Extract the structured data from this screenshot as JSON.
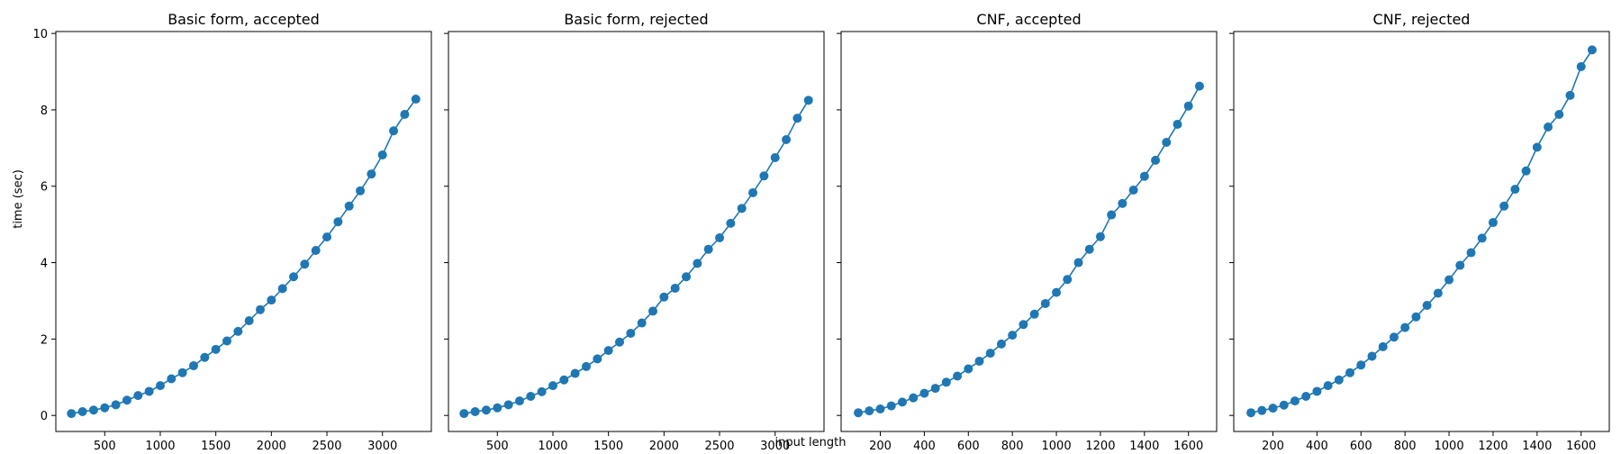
{
  "figure": {
    "ylabel": "time (sec)",
    "xlabel": "input length",
    "series_color": "#1f77b4"
  },
  "chart_data": [
    {
      "type": "line",
      "title": "Basic form, accepted",
      "xlabel": "input length",
      "ylabel": "time (sec)",
      "xlim": [
        60,
        3440
      ],
      "ylim": [
        -0.42,
        10.05
      ],
      "xticks": [
        500,
        1000,
        1500,
        2000,
        2500,
        3000
      ],
      "yticks": [
        0,
        2,
        4,
        6,
        8,
        10
      ],
      "grid": false,
      "x": [
        200,
        300,
        400,
        500,
        600,
        700,
        800,
        900,
        1000,
        1100,
        1200,
        1300,
        1400,
        1500,
        1600,
        1700,
        1800,
        1900,
        2000,
        2100,
        2200,
        2300,
        2400,
        2500,
        2600,
        2700,
        2800,
        2900,
        3000,
        3100,
        3200,
        3300
      ],
      "y": [
        0.05,
        0.1,
        0.14,
        0.2,
        0.28,
        0.4,
        0.52,
        0.63,
        0.78,
        0.96,
        1.12,
        1.3,
        1.52,
        1.73,
        1.95,
        2.2,
        2.48,
        2.77,
        3.02,
        3.32,
        3.63,
        3.96,
        4.32,
        4.67,
        5.07,
        5.48,
        5.88,
        6.32,
        6.82,
        7.45,
        7.88,
        8.28
      ]
    },
    {
      "type": "line",
      "title": "Basic form, rejected",
      "xlabel": "input length",
      "ylabel": "time (sec)",
      "xlim": [
        60,
        3440
      ],
      "ylim": [
        -0.42,
        10.05
      ],
      "xticks": [
        500,
        1000,
        1500,
        2000,
        2500,
        3000
      ],
      "yticks": [
        0,
        2,
        4,
        6,
        8,
        10
      ],
      "grid": false,
      "x": [
        200,
        300,
        400,
        500,
        600,
        700,
        800,
        900,
        1000,
        1100,
        1200,
        1300,
        1400,
        1500,
        1600,
        1700,
        1800,
        1900,
        2000,
        2100,
        2200,
        2300,
        2400,
        2500,
        2600,
        2700,
        2800,
        2900,
        3000,
        3100,
        3200,
        3300
      ],
      "y": [
        0.05,
        0.1,
        0.14,
        0.2,
        0.28,
        0.38,
        0.5,
        0.62,
        0.78,
        0.93,
        1.1,
        1.28,
        1.48,
        1.7,
        1.92,
        2.15,
        2.42,
        2.73,
        3.1,
        3.33,
        3.63,
        3.98,
        4.35,
        4.65,
        5.03,
        5.42,
        5.83,
        6.27,
        6.75,
        7.22,
        7.78,
        8.25
      ]
    },
    {
      "type": "line",
      "title": "CNF, accepted",
      "xlabel": "input length",
      "ylabel": "time (sec)",
      "xlim": [
        22,
        1728
      ],
      "ylim": [
        -0.42,
        10.05
      ],
      "xticks": [
        200,
        400,
        600,
        800,
        1000,
        1200,
        1400,
        1600
      ],
      "yticks": [
        0,
        2,
        4,
        6,
        8,
        10
      ],
      "grid": false,
      "x": [
        100,
        150,
        200,
        250,
        300,
        350,
        400,
        450,
        500,
        550,
        600,
        650,
        700,
        750,
        800,
        850,
        900,
        950,
        1000,
        1050,
        1100,
        1150,
        1200,
        1250,
        1300,
        1350,
        1400,
        1450,
        1500,
        1550,
        1600,
        1650
      ],
      "y": [
        0.07,
        0.12,
        0.17,
        0.25,
        0.35,
        0.46,
        0.58,
        0.71,
        0.87,
        1.03,
        1.22,
        1.42,
        1.63,
        1.87,
        2.1,
        2.38,
        2.65,
        2.93,
        3.22,
        3.56,
        4.0,
        4.35,
        4.68,
        5.25,
        5.55,
        5.9,
        6.26,
        6.68,
        7.15,
        7.62,
        8.1,
        8.62
      ]
    },
    {
      "type": "line",
      "title": "CNF, rejected",
      "xlabel": "input length",
      "ylabel": "time (sec)",
      "xlim": [
        22,
        1728
      ],
      "ylim": [
        -0.42,
        10.05
      ],
      "xticks": [
        200,
        400,
        600,
        800,
        1000,
        1200,
        1400,
        1600
      ],
      "yticks": [
        0,
        2,
        4,
        6,
        8,
        10
      ],
      "grid": false,
      "x": [
        100,
        150,
        200,
        250,
        300,
        350,
        400,
        450,
        500,
        550,
        600,
        650,
        700,
        750,
        800,
        850,
        900,
        950,
        1000,
        1050,
        1100,
        1150,
        1200,
        1250,
        1300,
        1350,
        1400,
        1450,
        1500,
        1550,
        1600,
        1650
      ],
      "y": [
        0.07,
        0.13,
        0.19,
        0.27,
        0.38,
        0.5,
        0.63,
        0.78,
        0.93,
        1.12,
        1.32,
        1.55,
        1.8,
        2.05,
        2.3,
        2.58,
        2.88,
        3.2,
        3.55,
        3.93,
        4.26,
        4.64,
        5.05,
        5.48,
        5.92,
        6.4,
        7.02,
        7.55,
        7.88,
        8.38,
        9.13,
        9.57
      ]
    }
  ]
}
